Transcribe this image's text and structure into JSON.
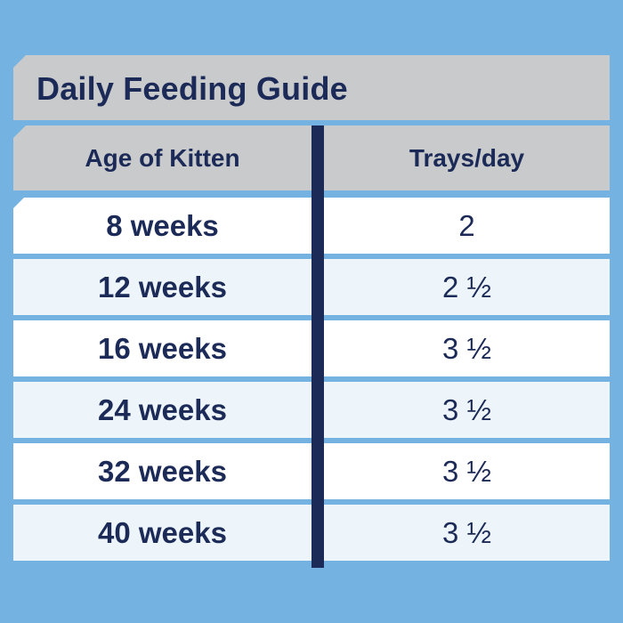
{
  "title": "Daily Feeding Guide",
  "columns": [
    "Age of Kitten",
    "Trays/day"
  ],
  "rows": [
    {
      "age": "8 weeks",
      "trays": "2"
    },
    {
      "age": "12 weeks",
      "trays": "2 ½"
    },
    {
      "age": "16 weeks",
      "trays": "3 ½"
    },
    {
      "age": "24 weeks",
      "trays": "3 ½"
    },
    {
      "age": "32 weeks",
      "trays": "3 ½"
    },
    {
      "age": "40 weeks",
      "trays": "3 ½"
    }
  ],
  "colors": {
    "background": "#74b3e1",
    "header": "#c8cacc",
    "text": "#1c2a57",
    "row_light": "#ffffff",
    "row_tint": "#edf5fb"
  }
}
